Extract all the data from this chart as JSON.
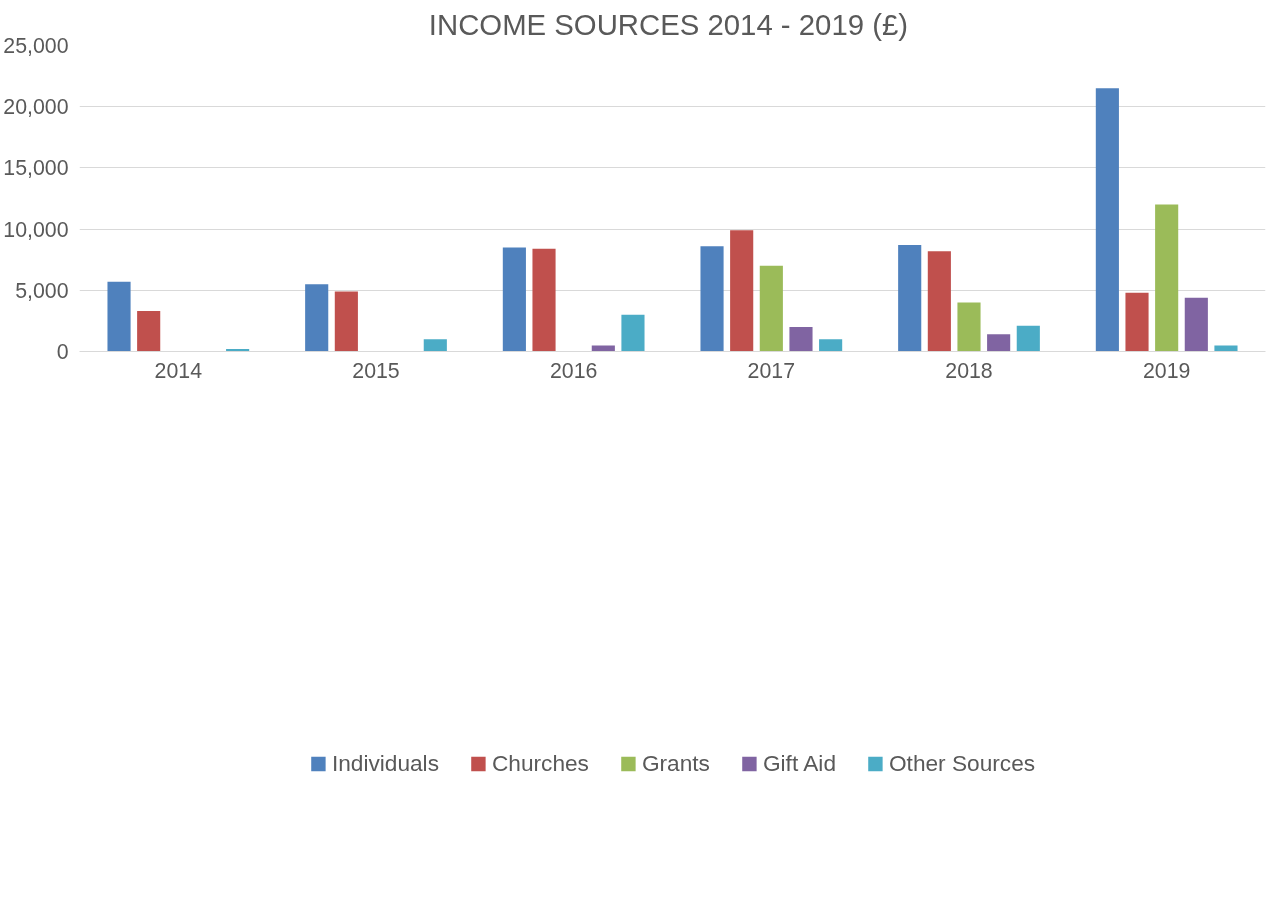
{
  "chart_data": {
    "type": "bar",
    "title": "INCOME SOURCES 2014 - 2019  (£)",
    "categories": [
      "2014",
      "2015",
      "2016",
      "2017",
      "2018",
      "2019"
    ],
    "series": [
      {
        "name": "Individuals",
        "color": "#4f81bd",
        "values": [
          5700,
          5500,
          8500,
          8600,
          8700,
          21500
        ]
      },
      {
        "name": "Churches",
        "color": "#c0504d",
        "values": [
          3300,
          4900,
          8400,
          9900,
          8200,
          4800
        ]
      },
      {
        "name": "Grants",
        "color": "#9bbb59",
        "values": [
          null,
          null,
          null,
          7000,
          4000,
          12000
        ]
      },
      {
        "name": "Gift Aid",
        "color": "#8064a2",
        "values": [
          null,
          null,
          500,
          2000,
          1400,
          4400
        ]
      },
      {
        "name": "Other Sources",
        "color": "#4bacc6",
        "values": [
          200,
          1000,
          3000,
          1000,
          2100,
          500
        ]
      }
    ],
    "ylim": [
      0,
      25000
    ],
    "yticks": [
      {
        "value": 0,
        "label": "0"
      },
      {
        "value": 5000,
        "label": "5,000"
      },
      {
        "value": 10000,
        "label": "10,000"
      },
      {
        "value": 15000,
        "label": "15,000"
      },
      {
        "value": 20000,
        "label": "20,000"
      },
      {
        "value": 25000,
        "label": "25,000"
      }
    ],
    "grid": "y",
    "legend": "bottom"
  }
}
